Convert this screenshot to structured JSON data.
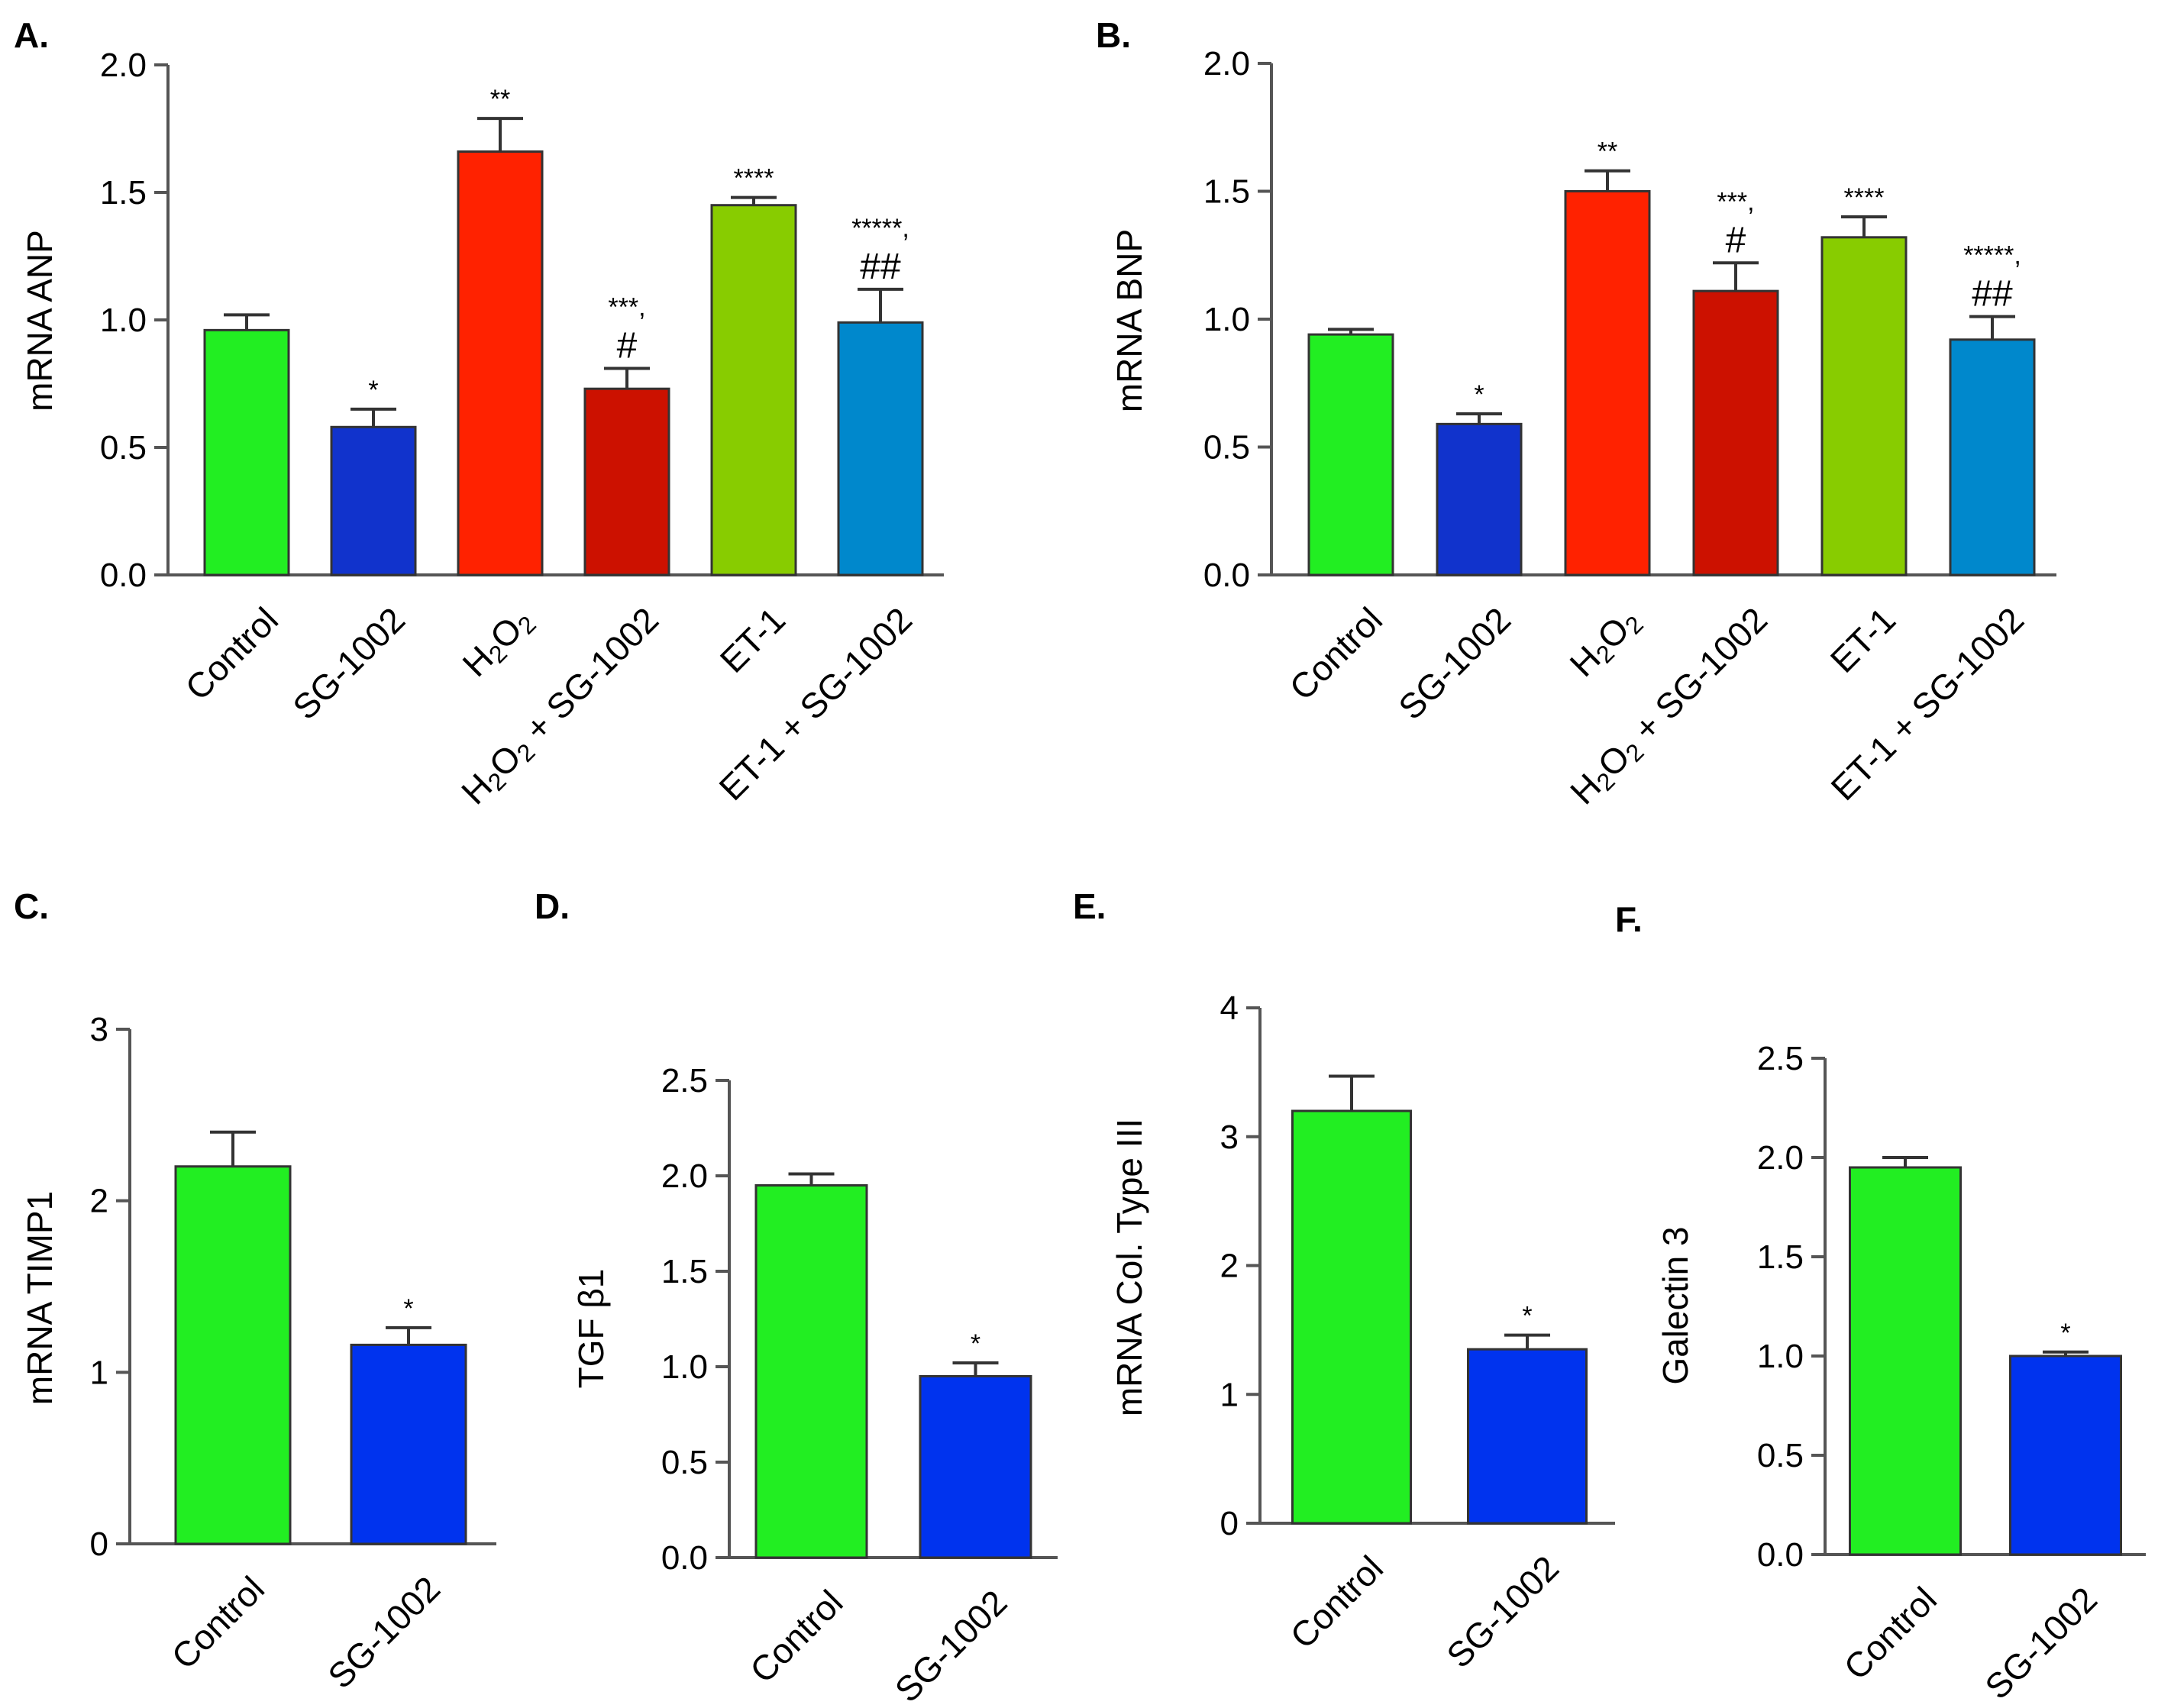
{
  "chart_data": [
    {
      "type": "bar",
      "panel": "A.",
      "ylabel": "mRNA ANP",
      "ylim": [
        0,
        2.0
      ],
      "yticks": [
        "0.0",
        "0.5",
        "1.0",
        "1.5",
        "2.0"
      ],
      "categories": [
        {
          "text": "Control"
        },
        {
          "text": "SG-1002"
        },
        {
          "text": "H",
          "sub1": "2",
          "mid": "O",
          "sub2": "2"
        },
        {
          "text": "H",
          "sub1": "2",
          "mid": "O",
          "sub2": "2",
          "tail": " + SG-1002"
        },
        {
          "text": "ET-1"
        },
        {
          "text": "ET-1 + SG-1002"
        }
      ],
      "values": [
        0.96,
        0.58,
        1.66,
        0.73,
        1.45,
        0.99
      ],
      "errors": [
        0.06,
        0.07,
        0.13,
        0.08,
        0.03,
        0.13
      ],
      "colors": [
        "#22ee22",
        "#1133cc",
        "#ff2200",
        "#cc1100",
        "#88cc00",
        "#0088cc"
      ],
      "annotations": [
        "",
        "*",
        "**",
        "***,",
        "****",
        "*****,"
      ],
      "hashes": [
        "",
        "",
        "",
        "#",
        "",
        "##"
      ]
    },
    {
      "type": "bar",
      "panel": "B.",
      "ylabel": "mRNA BNP",
      "ylim": [
        0,
        2.0
      ],
      "yticks": [
        "0.0",
        "0.5",
        "1.0",
        "1.5",
        "2.0"
      ],
      "categories": [
        {
          "text": "Control"
        },
        {
          "text": "SG-1002"
        },
        {
          "text": "H",
          "sub1": "2",
          "mid": "O",
          "sub2": "2"
        },
        {
          "text": "H",
          "sub1": "2",
          "mid": "O",
          "sub2": "2",
          "tail": " + SG-1002"
        },
        {
          "text": "ET-1"
        },
        {
          "text": "ET-1 + SG-1002"
        }
      ],
      "values": [
        0.94,
        0.59,
        1.5,
        1.11,
        1.32,
        0.92
      ],
      "errors": [
        0.02,
        0.04,
        0.08,
        0.11,
        0.08,
        0.09
      ],
      "colors": [
        "#22ee22",
        "#1133cc",
        "#ff2200",
        "#cc1100",
        "#88cc00",
        "#0088cc"
      ],
      "annotations": [
        "",
        "*",
        "**",
        "***,",
        "****",
        "*****,"
      ],
      "hashes": [
        "",
        "",
        "",
        "#",
        "",
        "##"
      ]
    },
    {
      "type": "bar",
      "panel": "C.",
      "ylabel": "mRNA TIMP1",
      "ylim": [
        0,
        3
      ],
      "yticks": [
        "0",
        "1",
        "2",
        "3"
      ],
      "categories": [
        {
          "text": "Control"
        },
        {
          "text": "SG-1002"
        }
      ],
      "values": [
        2.2,
        1.16
      ],
      "errors": [
        0.2,
        0.1
      ],
      "colors": [
        "#22ee22",
        "#0033ee"
      ],
      "annotations": [
        "",
        "*"
      ],
      "hashes": [
        "",
        ""
      ]
    },
    {
      "type": "bar",
      "panel": "D.",
      "ylabel": "TGF β1",
      "ylim": [
        0,
        2.5
      ],
      "yticks": [
        "0.0",
        "0.5",
        "1.0",
        "1.5",
        "2.0",
        "2.5"
      ],
      "categories": [
        {
          "text": "Control"
        },
        {
          "text": "SG-1002"
        }
      ],
      "values": [
        1.95,
        0.95
      ],
      "errors": [
        0.06,
        0.07
      ],
      "colors": [
        "#22ee22",
        "#0033ee"
      ],
      "annotations": [
        "",
        "*"
      ],
      "hashes": [
        "",
        ""
      ]
    },
    {
      "type": "bar",
      "panel": "E.",
      "ylabel": "mRNA Col. Type III",
      "ylim": [
        0,
        4
      ],
      "yticks": [
        "0",
        "1",
        "2",
        "3",
        "4"
      ],
      "categories": [
        {
          "text": "Control"
        },
        {
          "text": "SG-1002"
        }
      ],
      "values": [
        3.2,
        1.35
      ],
      "errors": [
        0.27,
        0.11
      ],
      "colors": [
        "#22ee22",
        "#0033ee"
      ],
      "annotations": [
        "",
        "*"
      ],
      "hashes": [
        "",
        ""
      ]
    },
    {
      "type": "bar",
      "panel": "F.",
      "ylabel": "Galectin 3",
      "ylim": [
        0,
        2.5
      ],
      "yticks": [
        "0.0",
        "0.5",
        "1.0",
        "1.5",
        "2.0",
        "2.5"
      ],
      "categories": [
        {
          "text": "Control"
        },
        {
          "text": "SG-1002"
        }
      ],
      "values": [
        1.95,
        1.0
      ],
      "errors": [
        0.05,
        0.02
      ],
      "colors": [
        "#22ee22",
        "#0033ee"
      ],
      "annotations": [
        "",
        "*"
      ],
      "hashes": [
        "",
        ""
      ]
    }
  ]
}
